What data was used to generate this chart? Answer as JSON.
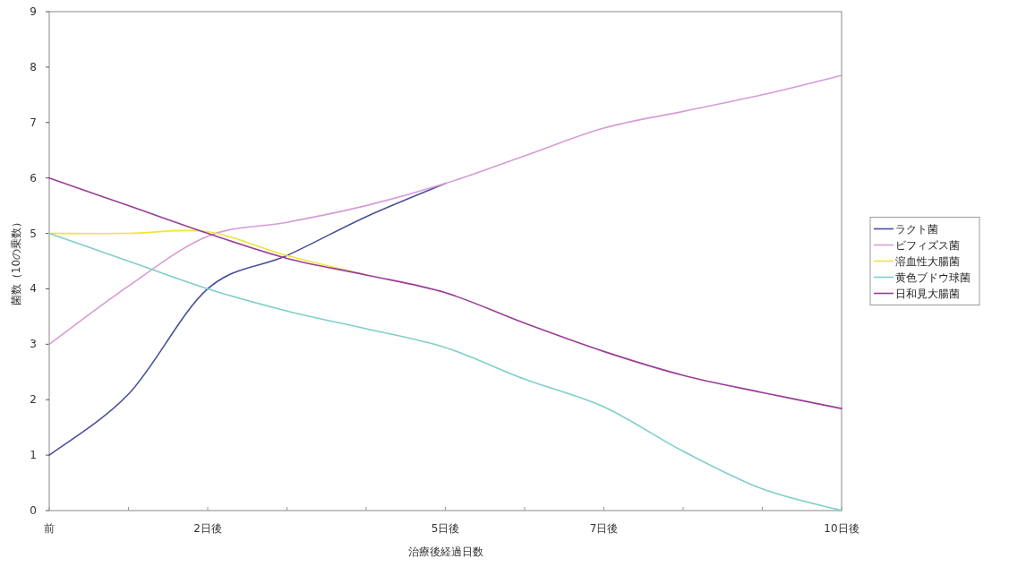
{
  "chart_data": {
    "type": "line",
    "xlabel": "治療後経過日数",
    "ylabel": "菌数（10の乗数）",
    "categories": [
      "前",
      null,
      "2日後",
      null,
      null,
      "5日後",
      null,
      "7日後",
      null,
      null,
      "10日後"
    ],
    "ylim": [
      0,
      9
    ],
    "yticks": [
      0,
      1,
      2,
      3,
      4,
      5,
      6,
      7,
      8,
      9
    ],
    "grid": false,
    "legend": "right",
    "marker": "none",
    "line_style": "solid",
    "series": [
      {
        "name": "ラクト菌",
        "color": "#4b4e9a",
        "values": [
          1,
          2.1,
          4.0,
          4.6,
          5.3,
          5.9,
          null,
          null,
          null,
          null,
          null
        ]
      },
      {
        "name": "ビフィズス菌",
        "color": "#d79bd6",
        "values": [
          3,
          4.05,
          4.95,
          5.2,
          5.5,
          5.9,
          6.4,
          6.9,
          7.2,
          7.5,
          7.85
        ]
      },
      {
        "name": "溶血性大腸菌",
        "color": "#f0e43a",
        "values": [
          5,
          5,
          5.03,
          4.6,
          4.25,
          null,
          null,
          null,
          null,
          null,
          null
        ]
      },
      {
        "name": "黄色ブドウ球菌",
        "color": "#7fcfc8",
        "values": [
          5,
          4.5,
          4.0,
          3.6,
          3.28,
          2.94,
          2.37,
          1.87,
          1.07,
          0.39,
          0
        ]
      },
      {
        "name": "日和見大腸菌",
        "color": "#9b3c95",
        "values": [
          6,
          5.5,
          5.0,
          4.55,
          4.25,
          3.93,
          3.38,
          2.87,
          2.44,
          2.13,
          1.84
        ]
      }
    ]
  }
}
